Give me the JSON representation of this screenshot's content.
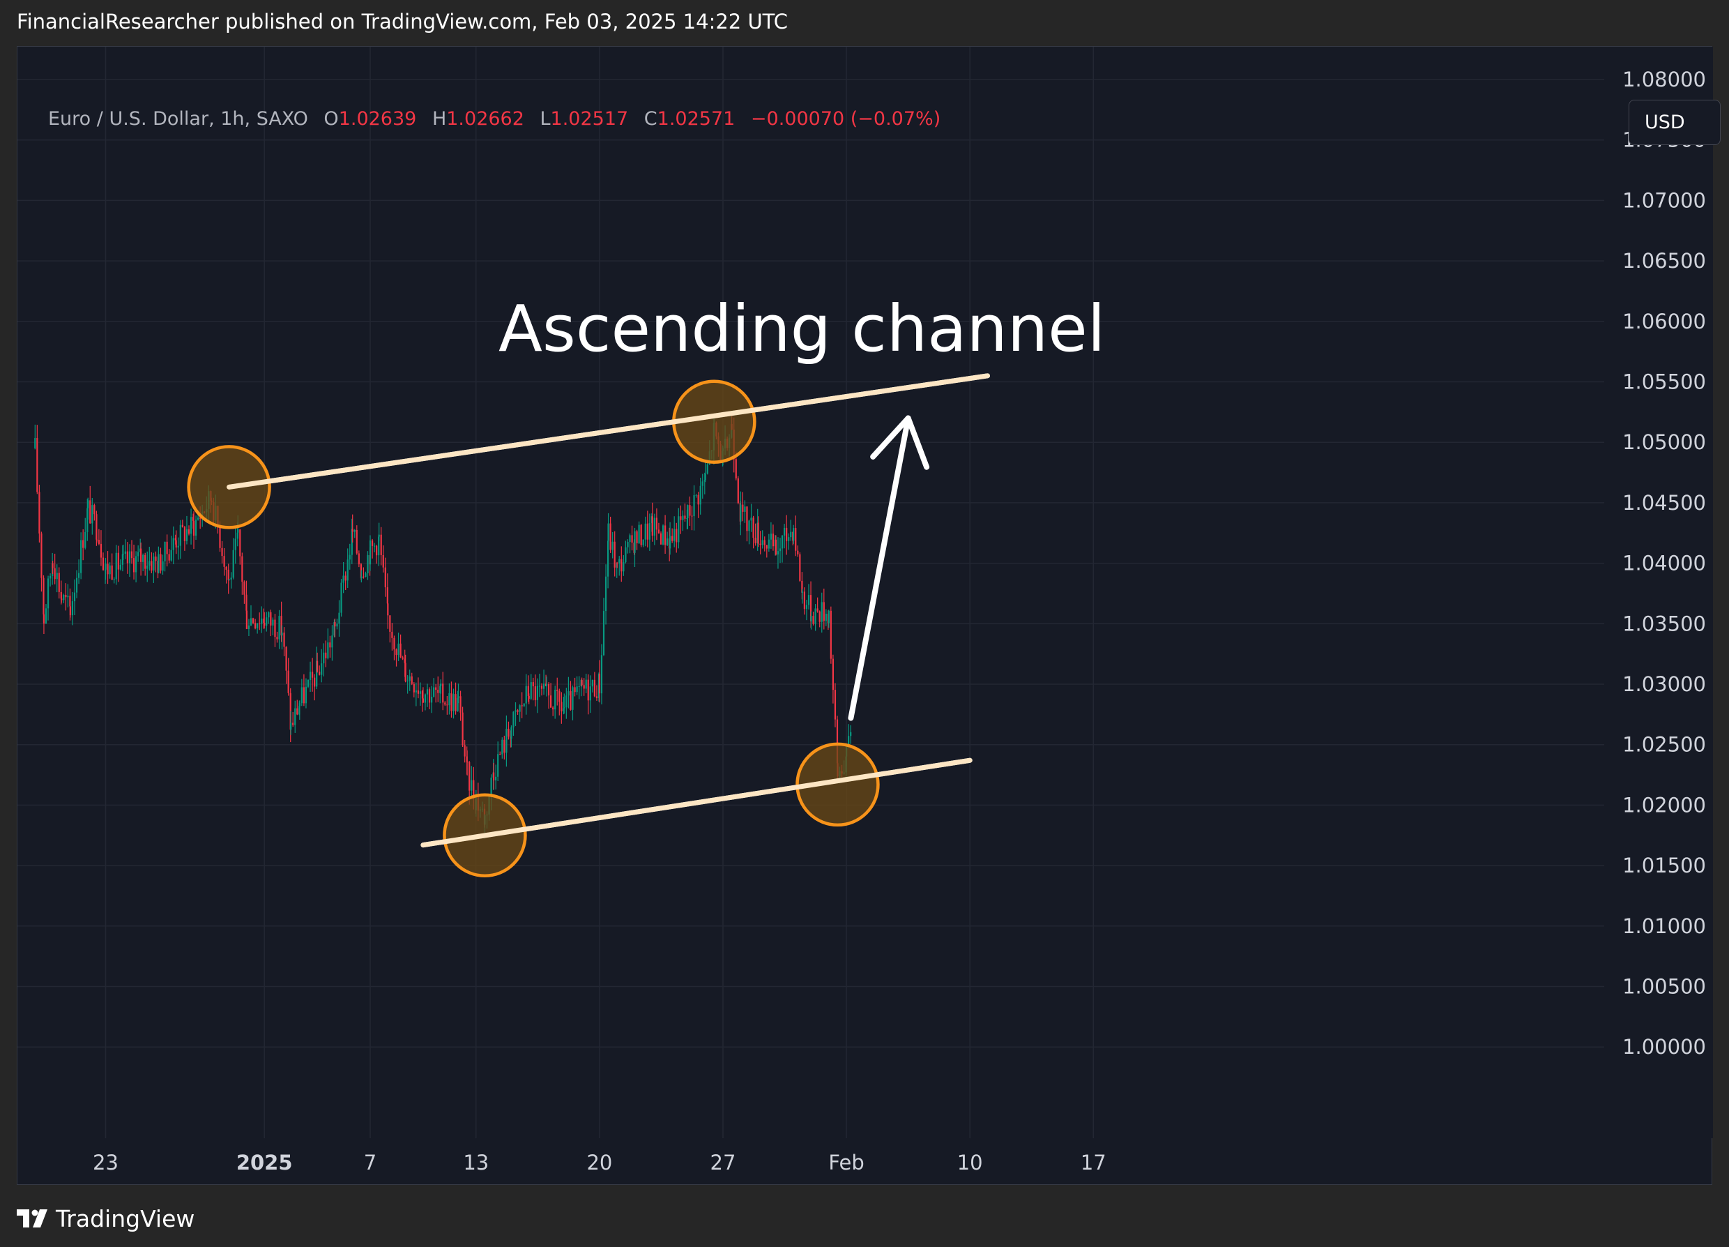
{
  "header": {
    "published_text": "FinancialResearcher published on TradingView.com, Feb 03, 2025 14:22 UTC"
  },
  "legend": {
    "symbol": "Euro / U.S. Dollar, 1h, SAXO",
    "open_label": "O",
    "open_value": "1.02639",
    "high_label": "H",
    "high_value": "1.02662",
    "low_label": "L",
    "low_value": "1.02517",
    "close_label": "C",
    "close_value": "1.02571",
    "change": "−0.00070 (−0.07%)"
  },
  "currency_button": "USD",
  "footer": {
    "brand": "TradingView"
  },
  "colors": {
    "background": "#161a25",
    "grid": "#232733",
    "up_candle": "#089981",
    "down_candle": "#f23645",
    "annotation": "#ffffff",
    "marker_ring": "#f7931a",
    "marker_fill": "#6b4a16"
  },
  "chart_data": {
    "type": "candlestick",
    "symbol": "EURUSD",
    "interval": "1h",
    "annotation_title": "Ascending channel",
    "y_ticks": [
      "1.08000",
      "1.07500",
      "1.07000",
      "1.06500",
      "1.06000",
      "1.05500",
      "1.05000",
      "1.04500",
      "1.04000",
      "1.03500",
      "1.03000",
      "1.02500",
      "1.02000",
      "1.01500",
      "1.01000",
      "1.00500",
      "1.00000"
    ],
    "x_ticks": [
      "23",
      "2025",
      "7",
      "13",
      "20",
      "27",
      "Feb",
      "10",
      "17"
    ],
    "ylim": [
      0.995,
      1.087
    ],
    "grid": true,
    "price_path": [
      [
        "2024-12-19 00:00",
        1.0495
      ],
      [
        "2024-12-19 12:00",
        1.0355
      ],
      [
        "2024-12-20 00:00",
        1.0405
      ],
      [
        "2024-12-20 12:00",
        1.0372
      ],
      [
        "2024-12-21 00:00",
        1.0362
      ],
      [
        "2024-12-22 00:00",
        1.0445
      ],
      [
        "2024-12-22 12:00",
        1.043
      ],
      [
        "2024-12-23 00:00",
        1.0395
      ],
      [
        "2024-12-24 00:00",
        1.04
      ],
      [
        "2024-12-25 00:00",
        1.0405
      ],
      [
        "2024-12-26 00:00",
        1.04
      ],
      [
        "2024-12-27 00:00",
        1.042
      ],
      [
        "2024-12-28 00:00",
        1.0432
      ],
      [
        "2024-12-29 00:00",
        1.0455
      ],
      [
        "2024-12-30 00:00",
        1.0385
      ],
      [
        "2024-12-30 12:00",
        1.042
      ],
      [
        "2024-12-31 00:00",
        1.0355
      ],
      [
        "2025-01-01 00:00",
        1.0355
      ],
      [
        "2025-01-02 00:00",
        1.0345
      ],
      [
        "2025-01-02 12:00",
        1.0265
      ],
      [
        "2025-01-03 00:00",
        1.0285
      ],
      [
        "2025-01-04 00:00",
        1.031
      ],
      [
        "2025-01-05 00:00",
        1.0345
      ],
      [
        "2025-01-06 00:00",
        1.0425
      ],
      [
        "2025-01-06 12:00",
        1.0395
      ],
      [
        "2025-01-07 00:00",
        1.041
      ],
      [
        "2025-01-07 12:00",
        1.042
      ],
      [
        "2025-01-08 00:00",
        1.0355
      ],
      [
        "2025-01-09 00:00",
        1.031
      ],
      [
        "2025-01-10 00:00",
        1.0295
      ],
      [
        "2025-01-11 00:00",
        1.029
      ],
      [
        "2025-01-12 00:00",
        1.0285
      ],
      [
        "2025-01-12 12:00",
        1.0225
      ],
      [
        "2025-01-13 00:00",
        1.0205
      ],
      [
        "2025-01-13 12:00",
        1.019
      ],
      [
        "2025-01-14 00:00",
        1.023
      ],
      [
        "2025-01-15 00:00",
        1.0265
      ],
      [
        "2025-01-16 00:00",
        1.0295
      ],
      [
        "2025-01-17 00:00",
        1.029
      ],
      [
        "2025-01-18 00:00",
        1.028
      ],
      [
        "2025-01-19 00:00",
        1.0295
      ],
      [
        "2025-01-20 00:00",
        1.03
      ],
      [
        "2025-01-20 12:00",
        1.0425
      ],
      [
        "2025-01-21 00:00",
        1.0395
      ],
      [
        "2025-01-22 00:00",
        1.042
      ],
      [
        "2025-01-23 00:00",
        1.043
      ],
      [
        "2025-01-24 00:00",
        1.042
      ],
      [
        "2025-01-25 00:00",
        1.044
      ],
      [
        "2025-01-26 00:00",
        1.047
      ],
      [
        "2025-01-26 12:00",
        1.051
      ],
      [
        "2025-01-27 00:00",
        1.0485
      ],
      [
        "2025-01-27 12:00",
        1.0515
      ],
      [
        "2025-01-28 00:00",
        1.044
      ],
      [
        "2025-01-29 00:00",
        1.0425
      ],
      [
        "2025-01-30 00:00",
        1.041
      ],
      [
        "2025-01-31 00:00",
        1.043
      ],
      [
        "2025-01-31 12:00",
        1.0375
      ],
      [
        "2025-02-01 00:00",
        1.036
      ],
      [
        "2025-02-02 00:00",
        1.036
      ],
      [
        "2025-02-02 12:00",
        1.0225
      ],
      [
        "2025-02-03 00:00",
        1.024
      ],
      [
        "2025-02-03 06:00",
        1.0265
      ]
    ],
    "annotations": {
      "upper_line": [
        [
          "2024-12-30 00:00",
          1.0463
        ],
        [
          "2025-02-11 00:00",
          1.0555
        ]
      ],
      "lower_line": [
        [
          "2025-01-10 00:00",
          1.0167
        ],
        [
          "2025-02-10 00:00",
          1.0237
        ]
      ],
      "highlighted_points": [
        [
          "2024-12-30 00:00",
          1.0463
        ],
        [
          "2025-01-13 12:00",
          1.0175
        ],
        [
          "2025-01-26 12:00",
          1.0517
        ],
        [
          "2025-02-02 12:00",
          1.0217
        ]
      ],
      "projection_arrow": [
        [
          "2025-02-03 06:00",
          1.0272
        ],
        [
          "2025-02-06 12:00",
          1.052
        ]
      ]
    }
  }
}
